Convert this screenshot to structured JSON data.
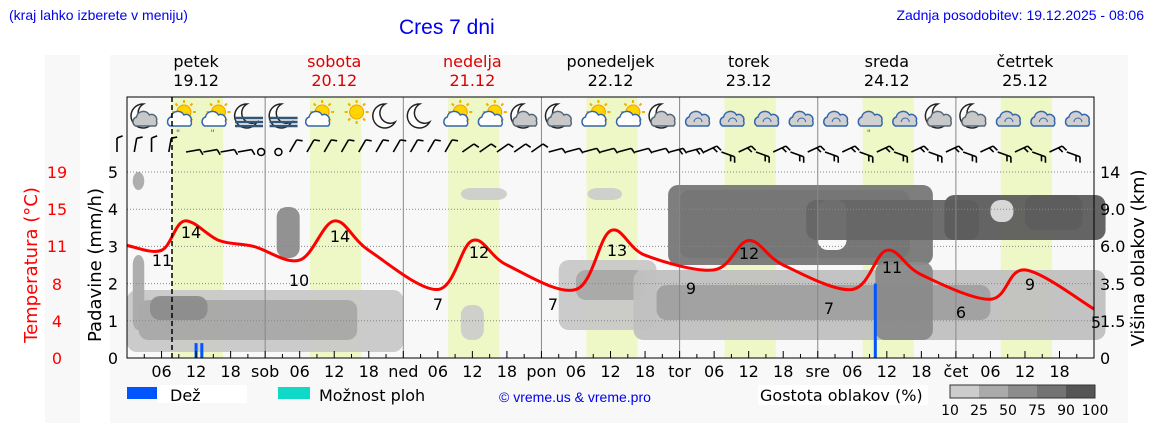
{
  "header": {
    "hint": "(kraj lahko izberete v meniju)",
    "title": "Cres 7 dni",
    "updated": "Zadnja posodobitev: 19.12.2025 - 08:06"
  },
  "days": [
    {
      "name": "petek",
      "date": "19.12",
      "weekend": false
    },
    {
      "name": "sobota",
      "date": "20.12",
      "weekend": true
    },
    {
      "name": "nedelja",
      "date": "21.12",
      "weekend": true
    },
    {
      "name": "ponedeljek",
      "date": "22.12",
      "weekend": false
    },
    {
      "name": "torek",
      "date": "23.12",
      "weekend": false
    },
    {
      "name": "sreda",
      "date": "24.12",
      "weekend": false
    },
    {
      "name": "četrtek",
      "date": "25.12",
      "weekend": false
    }
  ],
  "x_ticks": [
    "06",
    "12",
    "18",
    "sob",
    "06",
    "12",
    "18",
    "ned",
    "06",
    "12",
    "18",
    "pon",
    "06",
    "12",
    "18",
    "tor",
    "06",
    "12",
    "18",
    "sre",
    "06",
    "12",
    "18",
    "čet",
    "06",
    "12",
    "18"
  ],
  "axes": {
    "temp_label": "Temperatura (°C)",
    "temp_ticks": [
      "19",
      "15",
      "11",
      "8",
      "4",
      "0"
    ],
    "precip_label": "Padavine (mm/h)",
    "precip_ticks": [
      "5",
      "4",
      "3",
      "2",
      "1",
      "0"
    ],
    "cloud_label": "Višina oblakov (km)",
    "cloud_ticks": [
      "14",
      "9.0",
      "6.0",
      "3.5",
      "1.5",
      "0"
    ]
  },
  "legend": {
    "rain_label": "Dež",
    "rain_color": "#0055ff",
    "showers_label": "Možnost ploh",
    "showers_color": "#11d9c8",
    "copyright": "© vreme.us & vreme.pro",
    "cloud_density_label": "Gostota oblakov (%)",
    "cloud_density_ticks": [
      "10",
      "25",
      "50",
      "75",
      "90",
      "100"
    ],
    "cloud_density_colors": [
      "#cccccc",
      "#aaaaaa",
      "#8c8c8c",
      "#737373",
      "#555555"
    ]
  },
  "colors": {
    "temperature_line": "#ff0000",
    "daylight_band": "#eef7c6",
    "weekend_text": "#dd0000",
    "link_blue": "#0000ee"
  },
  "chart_data": {
    "type": "line",
    "title": "Cres 7 dni",
    "xlabel": "",
    "ylabel": "Temperatura (°C)",
    "ylabel_secondary": [
      "Padavine (mm/h)",
      "Višina oblakov (km)"
    ],
    "ylim": [
      0,
      19
    ],
    "grid": true,
    "legend_position": "bottom",
    "x_range": [
      "19.12 00:00",
      "25.12 24:00"
    ],
    "series": [
      {
        "name": "Temperatura (°C)",
        "color": "#ff0000",
        "points": [
          {
            "t": "19.12 00",
            "v": 11.5
          },
          {
            "t": "19.12 06",
            "v": 11
          },
          {
            "t": "19.12 10",
            "v": 14
          },
          {
            "t": "19.12 16",
            "v": 12
          },
          {
            "t": "19.12 22",
            "v": 11.4
          },
          {
            "t": "20.12 06",
            "v": 10
          },
          {
            "t": "20.12 12",
            "v": 14
          },
          {
            "t": "20.12 18",
            "v": 11
          },
          {
            "t": "21.12 06",
            "v": 7
          },
          {
            "t": "21.12 12",
            "v": 12
          },
          {
            "t": "21.12 18",
            "v": 9.5
          },
          {
            "t": "22.12 06",
            "v": 7
          },
          {
            "t": "22.12 12",
            "v": 13
          },
          {
            "t": "22.12 18",
            "v": 10.5
          },
          {
            "t": "23.12 06",
            "v": 9
          },
          {
            "t": "23.12 12",
            "v": 12
          },
          {
            "t": "23.12 18",
            "v": 9.5
          },
          {
            "t": "24.12 06",
            "v": 7
          },
          {
            "t": "24.12 12",
            "v": 11
          },
          {
            "t": "24.12 18",
            "v": 8.5
          },
          {
            "t": "25.12 06",
            "v": 6
          },
          {
            "t": "25.12 12",
            "v": 9
          },
          {
            "t": "25.12 24",
            "v": 5
          }
        ]
      },
      {
        "name": "Dež (mm/h)",
        "color": "#0055ff",
        "type": "bar",
        "points": [
          {
            "t": "19.12 12",
            "v": 0.4
          },
          {
            "t": "19.12 13",
            "v": 0.4
          },
          {
            "t": "24.12 10",
            "v": 2.0
          }
        ]
      }
    ],
    "annotations": {
      "temp_labels": [
        "11",
        "14",
        "10",
        "14",
        "7",
        "12",
        "7",
        "13",
        "9",
        "12",
        "7",
        "11",
        "6",
        "9",
        "5"
      ],
      "now_marker": "19.12 08:06"
    },
    "precip_axis": {
      "min": 0,
      "max": 5,
      "ticks": [
        0,
        1,
        2,
        3,
        4,
        5
      ]
    },
    "cloud_height_axis": {
      "ticks": [
        0,
        1.5,
        3.5,
        6.0,
        9.0,
        14
      ]
    }
  },
  "icons": [
    "moon-cloud-icon",
    "sun-cloud-rain-icon",
    "sun-cloud-rain-icon",
    "moon-fog-icon",
    "moon-fog-icon",
    "sun-cloud-icon",
    "sun-icon",
    "moon-icon",
    "moon-icon",
    "sun-cloud-icon",
    "sun-cloud-icon",
    "moon-cloud-icon",
    "moon-cloud-icon",
    "sun-cloud-icon",
    "sun-cloud-icon",
    "moon-cloud-icon",
    "cloud-icon",
    "cloud-icon",
    "cloud-icon",
    "cloud-icon",
    "cloud-icon",
    "cloud-rain-icon",
    "cloud-icon",
    "moon-cloud-icon",
    "moon-cloud-icon",
    "cloud-icon",
    "cloud-icon",
    "cloud-icon"
  ]
}
